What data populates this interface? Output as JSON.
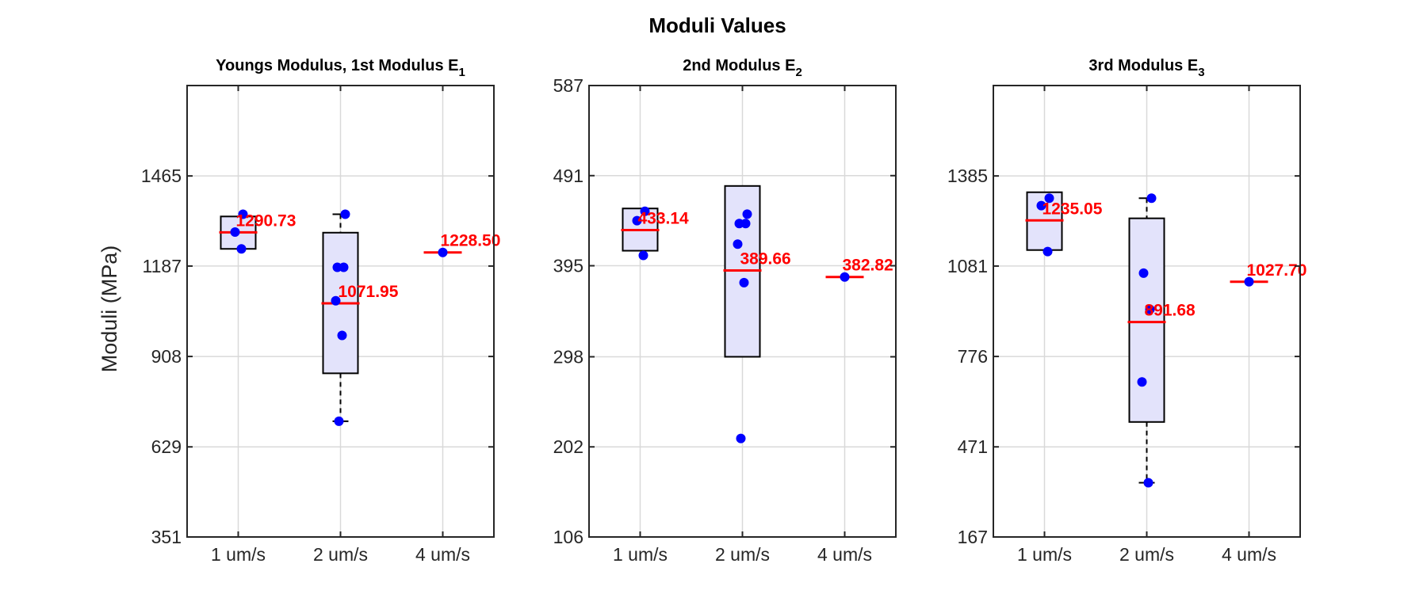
{
  "figure_title": "Moduli Values",
  "ylabel": "Moduli (MPa)",
  "colors": {
    "box_fill": "#e3e3fb",
    "median": "#ff0000",
    "points": "#0000ff",
    "grid": "#d9d9d9",
    "axis": "#262626"
  },
  "chart_data": [
    {
      "type": "box",
      "title": "Youngs Modulus, 1st Modulus E",
      "title_sub": "1",
      "categories": [
        "1 um/s",
        "2 um/s",
        "4 um/s"
      ],
      "yticks": [
        351,
        629,
        908,
        1187,
        1465
      ],
      "ylim": [
        351,
        1744
      ],
      "boxes": [
        {
          "category": "1 um/s",
          "q1": 1240,
          "q3": 1340,
          "median": 1291,
          "whisker_low": null,
          "whisker_high": null,
          "median_label": "1290.73",
          "points": [
            1347,
            1292,
            1240
          ]
        },
        {
          "category": "2 um/s",
          "q1": 856,
          "q3": 1290,
          "median": 1072,
          "whisker_low": 708,
          "whisker_high": 1347,
          "median_label": "1071.95",
          "points": [
            1347,
            1183,
            1183,
            1080,
            973,
            708
          ]
        },
        {
          "category": "4 um/s",
          "q1": null,
          "q3": null,
          "median": 1229,
          "whisker_low": null,
          "whisker_high": null,
          "median_label": "1228.50",
          "points": [
            1229
          ]
        }
      ]
    },
    {
      "type": "box",
      "title": "2nd Modulus E",
      "title_sub": "2",
      "categories": [
        "1 um/s",
        "2 um/s",
        "4 um/s"
      ],
      "yticks": [
        106,
        202,
        298,
        395,
        491,
        587
      ],
      "ylim": [
        106,
        587
      ],
      "boxes": [
        {
          "category": "1 um/s",
          "q1": 411,
          "q3": 456,
          "median": 433,
          "whisker_low": null,
          "whisker_high": null,
          "median_label": "433.14",
          "points": [
            453,
            443,
            406
          ]
        },
        {
          "category": "2 um/s",
          "q1": 298,
          "q3": 480,
          "median": 390,
          "whisker_low": null,
          "whisker_high": null,
          "median_label": "389.66",
          "points": [
            450,
            440,
            440,
            418,
            377,
            211
          ]
        },
        {
          "category": "4 um/s",
          "q1": null,
          "q3": null,
          "median": 383,
          "whisker_low": null,
          "whisker_high": null,
          "median_label": "382.82",
          "points": [
            383
          ]
        }
      ]
    },
    {
      "type": "box",
      "title": "3rd Modulus E",
      "title_sub": "3",
      "categories": [
        "1 um/s",
        "2 um/s",
        "4 um/s"
      ],
      "yticks": [
        167,
        471,
        776,
        1081,
        1385
      ],
      "ylim": [
        167,
        1690
      ],
      "boxes": [
        {
          "category": "1 um/s",
          "q1": 1135,
          "q3": 1330,
          "median": 1235,
          "whisker_low": null,
          "whisker_high": null,
          "median_label": "1235.05",
          "points": [
            1310,
            1285,
            1130
          ]
        },
        {
          "category": "2 um/s",
          "q1": 555,
          "q3": 1242,
          "median": 892,
          "whisker_low": 350,
          "whisker_high": 1310,
          "median_label": "891.68",
          "points": [
            1310,
            1057,
            935,
            690,
            350
          ]
        },
        {
          "category": "4 um/s",
          "q1": null,
          "q3": null,
          "median": 1028,
          "whisker_low": null,
          "whisker_high": null,
          "median_label": "1027.70",
          "points": [
            1028
          ]
        }
      ]
    }
  ]
}
